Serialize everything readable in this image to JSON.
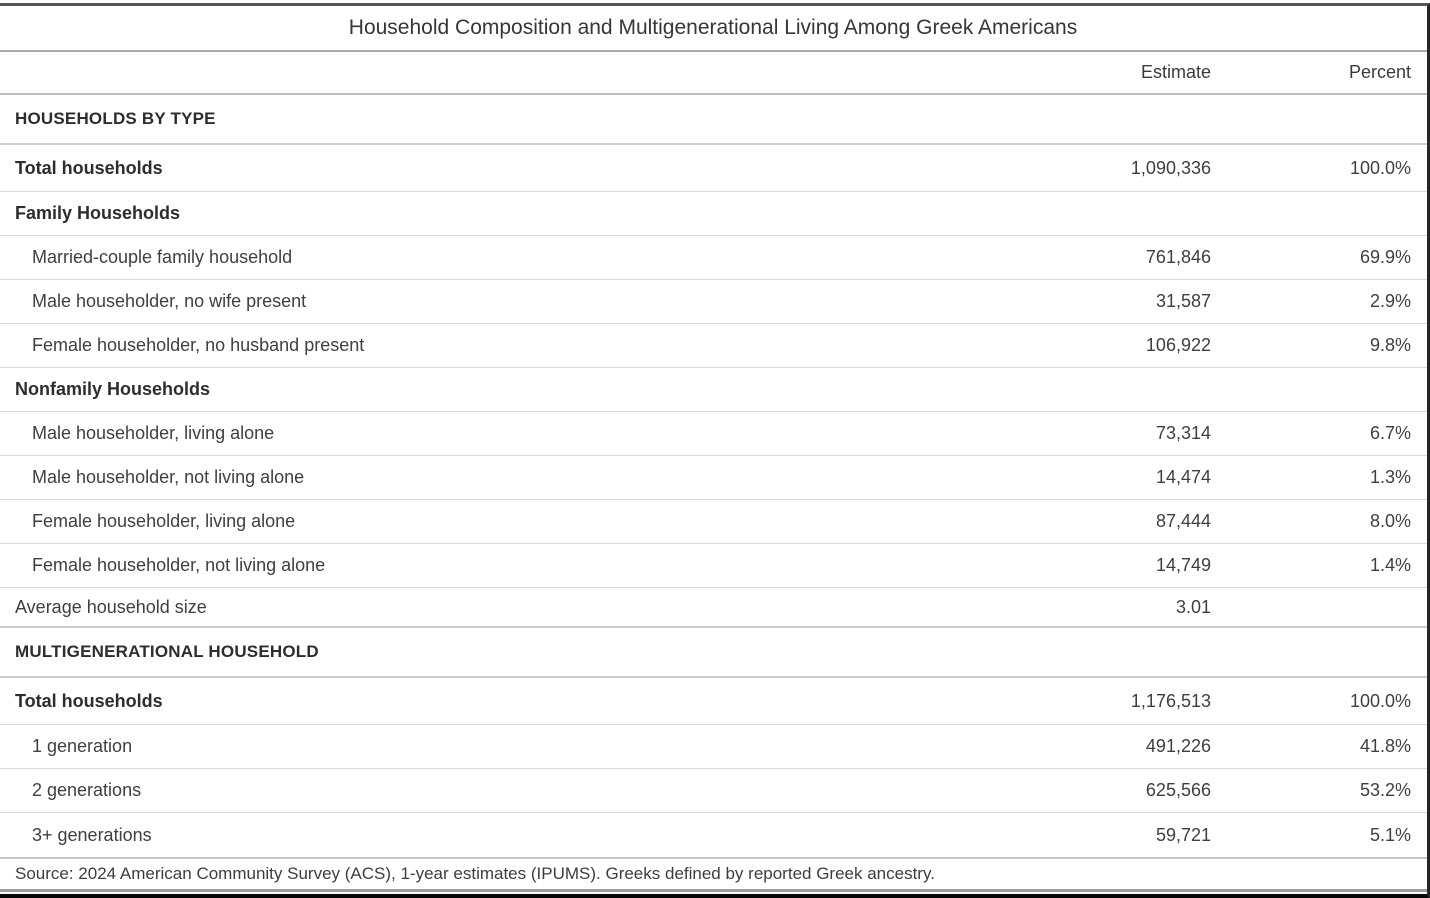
{
  "chart_data": {
    "type": "table",
    "title": "Household Composition and Multigenerational Living Among Greek Americans",
    "columns": {
      "estimate": "Estimate",
      "percent": "Percent"
    },
    "rows": [
      {
        "kind": "section",
        "label": "HOUSEHOLDS BY TYPE",
        "estimate": "",
        "percent": ""
      },
      {
        "kind": "total",
        "label": "Total households",
        "estimate": "1,090,336",
        "percent": "100.0%"
      },
      {
        "kind": "sub",
        "label": "Family Households",
        "estimate": "",
        "percent": ""
      },
      {
        "kind": "data",
        "label": "Married-couple family household",
        "estimate": "761,846",
        "percent": "69.9%"
      },
      {
        "kind": "data",
        "label": "Male householder, no wife present",
        "estimate": "31,587",
        "percent": "2.9%"
      },
      {
        "kind": "data",
        "label": "Female householder, no husband present",
        "estimate": "106,922",
        "percent": "9.8%"
      },
      {
        "kind": "sub",
        "label": "Nonfamily Households",
        "estimate": "",
        "percent": ""
      },
      {
        "kind": "data",
        "label": "Male householder, living alone",
        "estimate": "73,314",
        "percent": "6.7%"
      },
      {
        "kind": "data",
        "label": "Male householder, not living alone",
        "estimate": "14,474",
        "percent": "1.3%"
      },
      {
        "kind": "data",
        "label": "Female householder, living alone",
        "estimate": "87,444",
        "percent": "8.0%"
      },
      {
        "kind": "data",
        "label": "Female householder, not living alone",
        "estimate": "14,749",
        "percent": "1.4%"
      },
      {
        "kind": "plain",
        "label": "Average household size",
        "estimate": "3.01",
        "percent": ""
      },
      {
        "kind": "section",
        "label": "MULTIGENERATIONAL HOUSEHOLD",
        "estimate": "",
        "percent": ""
      },
      {
        "kind": "total",
        "label": "Total households",
        "estimate": "1,176,513",
        "percent": "100.0%"
      },
      {
        "kind": "data",
        "label": "1 generation",
        "estimate": "491,226",
        "percent": "41.8%"
      },
      {
        "kind": "data",
        "label": "2 generations",
        "estimate": "625,566",
        "percent": "53.2%"
      },
      {
        "kind": "data",
        "label": "3+ generations",
        "estimate": "59,721",
        "percent": "5.1%"
      }
    ],
    "source_note": "Source: 2024 American Community Survey (ACS), 1-year estimates (IPUMS). Greeks defined by reported Greek ancestry.",
    "layout_hints": {
      "grid": "horizontal row separators only",
      "legend": "none"
    },
    "colors": {
      "background": "#ffffff",
      "text": "#3f3f3f",
      "bold_text": "#2d2d2d",
      "top_rule": "#575757",
      "row_separator": "#d9d9d9",
      "section_separator": "#cccccc",
      "bottom_bar": "#070707"
    }
  }
}
